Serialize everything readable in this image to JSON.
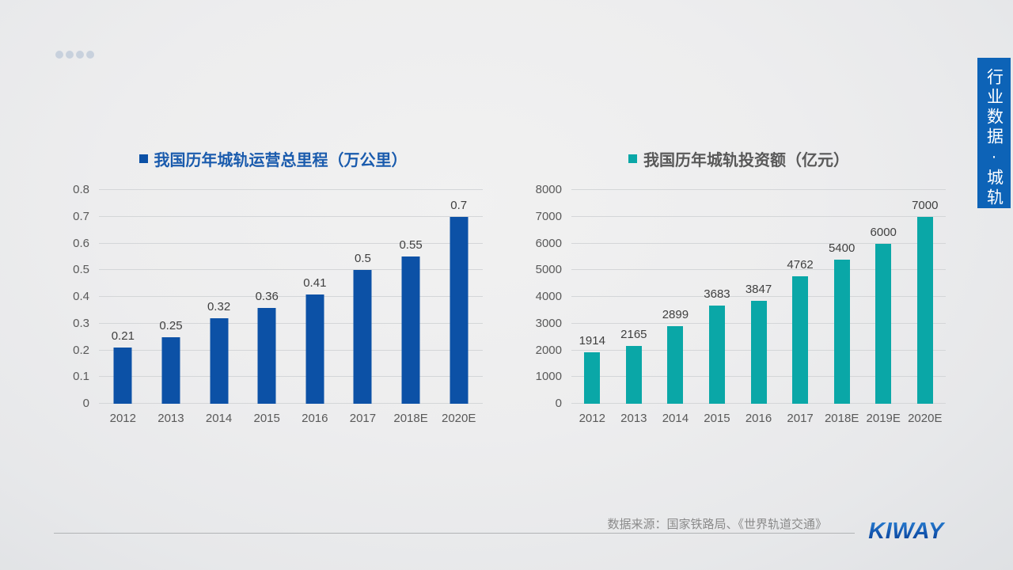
{
  "slide": {
    "side_banner": {
      "text": "行业数据·城轨",
      "bg_color": "#0d63b7",
      "text_color": "#ffffff"
    },
    "progress_dot_count": 4,
    "footer": {
      "source": "数据来源：国家铁路局、《世界轨道交通》",
      "logo": "KIWAY",
      "logo_color": "#1256b0"
    }
  },
  "chart_data": [
    {
      "type": "bar",
      "title": "我国历年城轨运营总里程（万公里）",
      "title_color": "#1a5bad",
      "bar_color": "#0c51a6",
      "legend_position": "top-center",
      "grid": true,
      "categories": [
        "2012",
        "2013",
        "2014",
        "2015",
        "2016",
        "2017",
        "2018E",
        "2020E"
      ],
      "values": [
        0.21,
        0.25,
        0.32,
        0.36,
        0.41,
        0.5,
        0.55,
        0.7
      ],
      "value_labels": [
        "0.21",
        "0.25",
        "0.32",
        "0.36",
        "0.41",
        "0.5",
        "0.55",
        "0.7"
      ],
      "xlabel": "",
      "ylabel": "",
      "ylim": [
        0,
        0.8
      ],
      "yticks": [
        "0",
        "0.1",
        "0.2",
        "0.3",
        "0.4",
        "0.5",
        "0.6",
        "0.7",
        "0.8"
      ]
    },
    {
      "type": "bar",
      "title": "我国历年城轨投资额（亿元）",
      "title_color": "#595959",
      "bar_color": "#0aa7a7",
      "legend_position": "top-center",
      "grid": true,
      "categories": [
        "2012",
        "2013",
        "2014",
        "2015",
        "2016",
        "2017",
        "2018E",
        "2019E",
        "2020E"
      ],
      "values": [
        1914,
        2165,
        2899,
        3683,
        3847,
        4762,
        5400,
        6000,
        7000
      ],
      "value_labels": [
        "1914",
        "2165",
        "2899",
        "3683",
        "3847",
        "4762",
        "5400",
        "6000",
        "7000"
      ],
      "xlabel": "",
      "ylabel": "",
      "ylim": [
        0,
        8000
      ],
      "yticks": [
        "0",
        "1000",
        "2000",
        "3000",
        "4000",
        "5000",
        "6000",
        "7000",
        "8000"
      ]
    }
  ]
}
